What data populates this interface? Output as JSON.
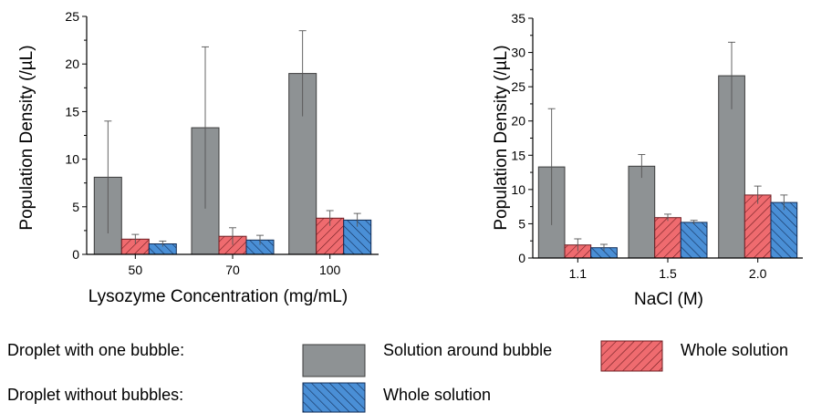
{
  "colors": {
    "gray": "#8e9294",
    "gray_edge": "#3c3c3c",
    "red": "#ef6b6f",
    "red_hatch": "#6e1d22",
    "blue": "#4a8fd6",
    "blue_hatch": "#112c56",
    "axis": "#000000"
  },
  "chart_data": [
    {
      "type": "bar",
      "categories": [
        "50",
        "70",
        "100"
      ],
      "xlabel": "Lysozyme Concentration (mg/mL)",
      "ylabel": "Population Density (/µL)",
      "ylim": [
        0,
        25
      ],
      "yticks": [
        "0",
        "5",
        "10",
        "15",
        "20",
        "25"
      ],
      "grid": false,
      "series": [
        {
          "name": "Solution around bubble",
          "group": "Droplet with one bubble",
          "style": "gray",
          "values": [
            8.1,
            13.3,
            19.0
          ],
          "errors": [
            5.9,
            8.5,
            4.5
          ]
        },
        {
          "name": "Whole solution",
          "group": "Droplet with one bubble",
          "style": "red-hatch",
          "values": [
            1.6,
            1.9,
            3.8
          ],
          "errors": [
            0.5,
            0.9,
            0.8
          ]
        },
        {
          "name": "Whole solution",
          "group": "Droplet without bubbles",
          "style": "blue-hatch",
          "values": [
            1.1,
            1.5,
            3.6
          ],
          "errors": [
            0.3,
            0.5,
            0.7
          ]
        }
      ]
    },
    {
      "type": "bar",
      "categories": [
        "1.1",
        "1.5",
        "2.0"
      ],
      "xlabel": "NaCl (M)",
      "ylabel": "Population Density (/µL)",
      "ylim": [
        0,
        35
      ],
      "yticks": [
        "0",
        "5",
        "10",
        "15",
        "20",
        "25",
        "30",
        "35"
      ],
      "grid": false,
      "series": [
        {
          "name": "Solution around bubble",
          "group": "Droplet with one bubble",
          "style": "gray",
          "values": [
            13.3,
            13.4,
            26.6
          ],
          "errors": [
            8.5,
            1.7,
            4.9
          ]
        },
        {
          "name": "Whole solution",
          "group": "Droplet with one bubble",
          "style": "red-hatch",
          "values": [
            1.9,
            5.9,
            9.2
          ],
          "errors": [
            0.9,
            0.5,
            1.3
          ]
        },
        {
          "name": "Whole solution",
          "group": "Droplet without bubbles",
          "style": "blue-hatch",
          "values": [
            1.5,
            5.2,
            8.1
          ],
          "errors": [
            0.5,
            0.3,
            1.1
          ]
        }
      ]
    }
  ],
  "legend": {
    "row1_label": "Droplet with one bubble:",
    "row2_label": "Droplet without bubbles:",
    "gray_label": "Solution around bubble",
    "red_label": "Whole solution",
    "blue_label": "Whole solution"
  }
}
